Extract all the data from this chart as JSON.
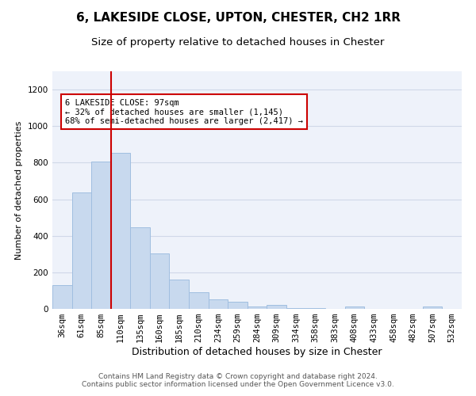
{
  "title": "6, LAKESIDE CLOSE, UPTON, CHESTER, CH2 1RR",
  "subtitle": "Size of property relative to detached houses in Chester",
  "xlabel": "Distribution of detached houses by size in Chester",
  "ylabel": "Number of detached properties",
  "categories": [
    "36sqm",
    "61sqm",
    "85sqm",
    "110sqm",
    "135sqm",
    "160sqm",
    "185sqm",
    "210sqm",
    "234sqm",
    "259sqm",
    "284sqm",
    "309sqm",
    "334sqm",
    "358sqm",
    "383sqm",
    "408sqm",
    "433sqm",
    "458sqm",
    "482sqm",
    "507sqm",
    "532sqm"
  ],
  "values": [
    130,
    635,
    805,
    855,
    445,
    305,
    160,
    90,
    50,
    40,
    15,
    20,
    5,
    5,
    0,
    15,
    0,
    0,
    0,
    15,
    0
  ],
  "bar_color": "#c8d9ee",
  "bar_edge_color": "#a0bee0",
  "vline_color": "#cc0000",
  "vline_x_index": 2.5,
  "annotation_text": "6 LAKESIDE CLOSE: 97sqm\n← 32% of detached houses are smaller (1,145)\n68% of semi-detached houses are larger (2,417) →",
  "annotation_box_color": "#ffffff",
  "annotation_box_edge": "#cc0000",
  "ylim": [
    0,
    1300
  ],
  "yticks": [
    0,
    200,
    400,
    600,
    800,
    1000,
    1200
  ],
  "footer_text": "Contains HM Land Registry data © Crown copyright and database right 2024.\nContains public sector information licensed under the Open Government Licence v3.0.",
  "title_fontsize": 11,
  "subtitle_fontsize": 9.5,
  "xlabel_fontsize": 9,
  "ylabel_fontsize": 8,
  "tick_fontsize": 7.5,
  "annot_fontsize": 7.5,
  "footer_fontsize": 6.5,
  "grid_color": "#d0d8e8",
  "background_color": "#eef2fa"
}
